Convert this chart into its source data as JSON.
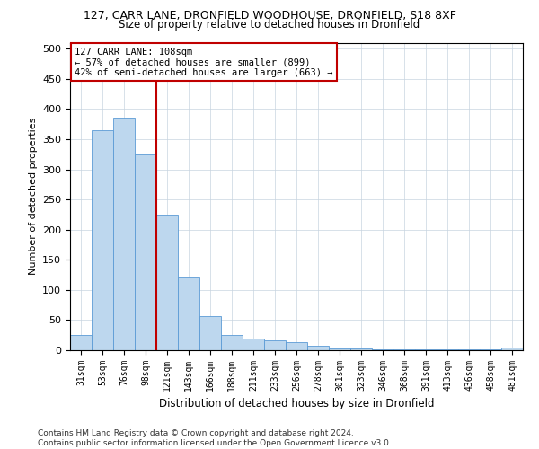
{
  "title": "127, CARR LANE, DRONFIELD WOODHOUSE, DRONFIELD, S18 8XF",
  "subtitle": "Size of property relative to detached houses in Dronfield",
  "xlabel": "Distribution of detached houses by size in Dronfield",
  "ylabel": "Number of detached properties",
  "categories": [
    "31sqm",
    "53sqm",
    "76sqm",
    "98sqm",
    "121sqm",
    "143sqm",
    "166sqm",
    "188sqm",
    "211sqm",
    "233sqm",
    "256sqm",
    "278sqm",
    "301sqm",
    "323sqm",
    "346sqm",
    "368sqm",
    "391sqm",
    "413sqm",
    "436sqm",
    "458sqm",
    "481sqm"
  ],
  "values": [
    25,
    365,
    385,
    325,
    225,
    120,
    57,
    25,
    20,
    17,
    13,
    7,
    3,
    3,
    2,
    2,
    2,
    2,
    2,
    2,
    5
  ],
  "bar_color": "#bdd7ee",
  "bar_edge_color": "#5b9bd5",
  "vline_x": 3.5,
  "vline_color": "#c00000",
  "annotation_text": "127 CARR LANE: 108sqm\n← 57% of detached houses are smaller (899)\n42% of semi-detached houses are larger (663) →",
  "annotation_box_color": "#ffffff",
  "annotation_box_edge": "#c00000",
  "footer": "Contains HM Land Registry data © Crown copyright and database right 2024.\nContains public sector information licensed under the Open Government Licence v3.0.",
  "ylim": [
    0,
    510
  ],
  "yticks": [
    0,
    50,
    100,
    150,
    200,
    250,
    300,
    350,
    400,
    450,
    500
  ],
  "background_color": "#ffffff",
  "grid_color": "#c8d4e0"
}
